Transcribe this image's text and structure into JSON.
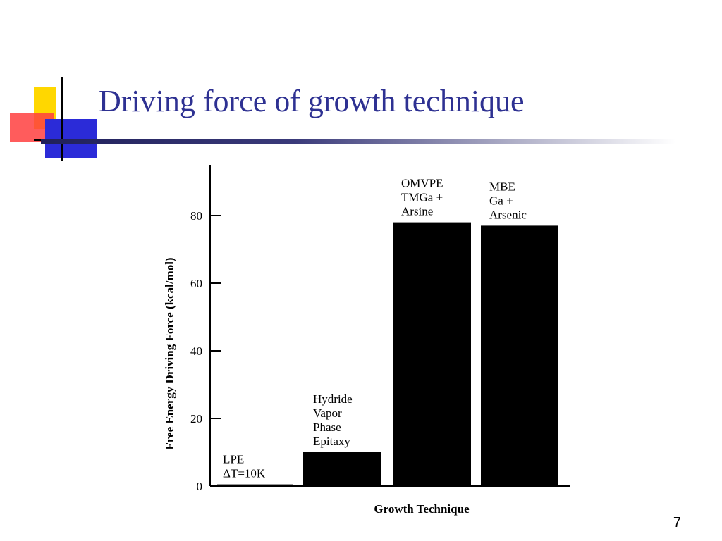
{
  "slide": {
    "title": "Driving force of growth technique",
    "number": "7"
  },
  "colors": {
    "title": "#2e3192",
    "bars": "#000000"
  },
  "chart_data": {
    "type": "bar",
    "title": "",
    "xlabel": "Growth Technique",
    "ylabel": "Free Energy Driving Force (kcal/mol)",
    "ylim": [
      0,
      95
    ],
    "yticks": [
      0,
      20,
      40,
      60,
      80
    ],
    "grid": false,
    "categories": [
      {
        "label_lines": [
          "LPE",
          "ΔT=10K"
        ],
        "value": 0.5
      },
      {
        "label_lines": [
          "Hydride",
          "Vapor",
          "Phase",
          "Epitaxy"
        ],
        "value": 10
      },
      {
        "label_lines": [
          "OMVPE",
          "TMGa +",
          "Arsine"
        ],
        "value": 78
      },
      {
        "label_lines": [
          "MBE",
          "Ga +",
          "Arsenic"
        ],
        "value": 77
      }
    ]
  }
}
